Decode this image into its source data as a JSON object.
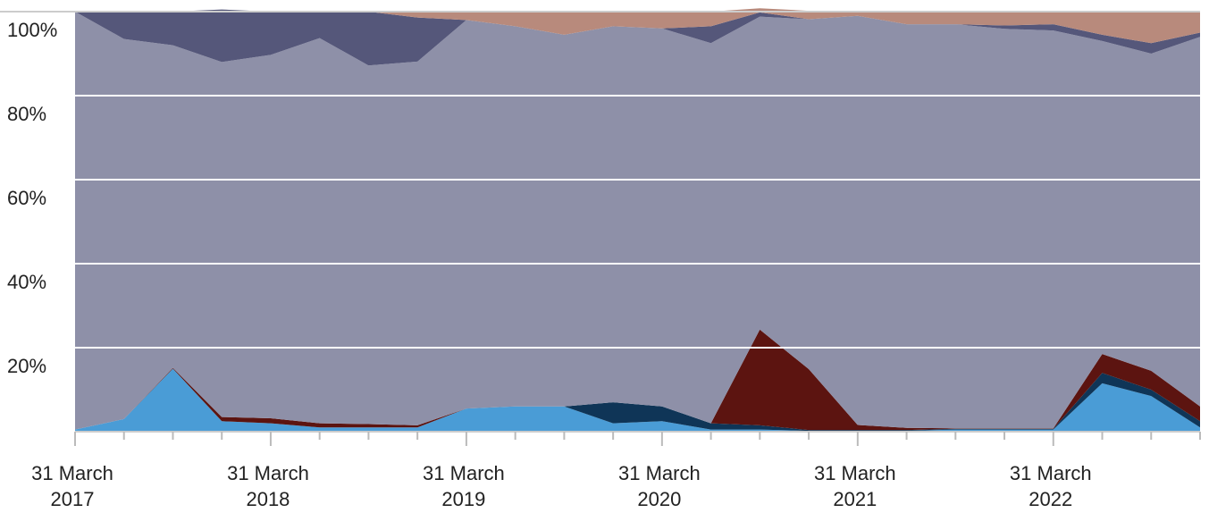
{
  "chart_data": {
    "type": "area",
    "stacked": true,
    "normalized": true,
    "x": [
      "2017-03-31",
      "2017-06-30",
      "2017-09-30",
      "2017-12-31",
      "2018-03-31",
      "2018-06-30",
      "2018-09-30",
      "2018-12-31",
      "2019-03-31",
      "2019-06-30",
      "2019-09-30",
      "2019-12-31",
      "2020-03-31",
      "2020-06-30",
      "2020-09-30",
      "2020-12-31",
      "2021-03-31",
      "2021-06-30",
      "2021-09-30",
      "2021-12-31",
      "2022-03-31",
      "2022-06-30",
      "2022-09-30",
      "2022-12-31"
    ],
    "xtick_labels": [
      {
        "lines": [
          "31 March",
          "2017"
        ]
      },
      {
        "lines": [
          "31 March",
          "2018"
        ]
      },
      {
        "lines": [
          "31 March",
          "2019"
        ]
      },
      {
        "lines": [
          "31 March",
          "2020"
        ]
      },
      {
        "lines": [
          "31 March",
          "2021"
        ]
      },
      {
        "lines": [
          "31 March",
          "2022"
        ]
      }
    ],
    "xtick_positions": [
      0,
      4,
      8,
      12,
      16,
      20
    ],
    "ytick_labels": [
      "100%",
      "80%",
      "60%",
      "40%",
      "20%"
    ],
    "ytick_values": [
      100,
      80,
      60,
      40,
      20
    ],
    "ylim": [
      0,
      100
    ],
    "grid": true,
    "series": [
      {
        "color": "#4a9cd6",
        "values": [
          0.5,
          3,
          15,
          2.5,
          2,
          1,
          1,
          1,
          5.5,
          6,
          6,
          2,
          2.5,
          0.5,
          0.5,
          0.2,
          0.2,
          0.2,
          0.5,
          0.5,
          0.5,
          11.5,
          8.5,
          1
        ]
      },
      {
        "color": "#0f3557",
        "values": [
          0,
          0,
          0,
          0,
          0,
          0,
          0,
          0,
          0,
          0,
          0,
          5,
          3.5,
          1.5,
          1,
          0.2,
          0.2,
          0.2,
          0.2,
          0.2,
          0.2,
          2.5,
          1.5,
          1.5
        ]
      },
      {
        "color": "#5c1410",
        "values": [
          0,
          0,
          0.2,
          1,
          1.2,
          1,
          0.8,
          0.5,
          0,
          0,
          0,
          0,
          0,
          0,
          22.8,
          14.5,
          1.2,
          0.5,
          0.1,
          0.1,
          0.1,
          4.5,
          4.5,
          3.5
        ]
      },
      {
        "color": "#8e90a8",
        "values": [
          99.5,
          90.5,
          76.8,
          84.5,
          86.5,
          91.7,
          85.4,
          86.6,
          92.5,
          90.5,
          88.5,
          89.5,
          90,
          90.5,
          74.5,
          83.3,
          97.4,
          96.1,
          96.2,
          95.1,
          94.7,
          74.5,
          75.5,
          88
        ]
      },
      {
        "color": "#55577a",
        "values": [
          0,
          6.5,
          8,
          12.5,
          10.3,
          6.3,
          12.8,
          10.5,
          0,
          0,
          0,
          0,
          0,
          4,
          1,
          0,
          0,
          0,
          0,
          0.8,
          1.5,
          1.5,
          2.5,
          1
        ]
      },
      {
        "color": "#b88a7c",
        "values": [
          0,
          0,
          0,
          0,
          0,
          0,
          0,
          1.4,
          2,
          3.5,
          5.5,
          3.5,
          4,
          3.5,
          1,
          2,
          1,
          3,
          3,
          3.3,
          3,
          5.5,
          7.5,
          5
        ]
      }
    ]
  }
}
